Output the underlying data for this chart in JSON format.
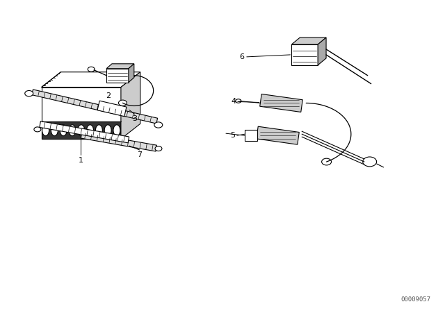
{
  "background_color": "#ffffff",
  "line_color": "#000000",
  "part_number": "00009057",
  "figsize": [
    6.4,
    4.48
  ],
  "dpi": 100
}
